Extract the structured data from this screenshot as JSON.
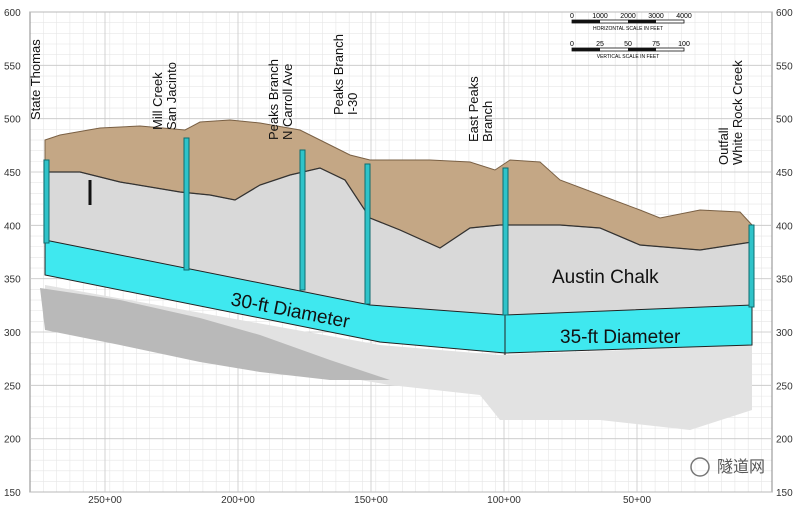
{
  "left_axis": {
    "ticks": [
      150,
      200,
      250,
      300,
      350,
      400,
      450,
      500,
      550,
      600
    ]
  },
  "right_axis": {
    "ticks": [
      150,
      200,
      250,
      300,
      350,
      400,
      450,
      500,
      550,
      600
    ]
  },
  "stations": [
    "250+00",
    "200+00",
    "150+00",
    "100+00",
    "50+00"
  ],
  "shafts": [
    {
      "lines": [
        "State Thomas"
      ]
    },
    {
      "lines": [
        "Mill Creek",
        "San Jacinto"
      ]
    },
    {
      "lines": [
        "Peaks Branch",
        "N Carroll Ave"
      ]
    },
    {
      "lines": [
        "Peaks Branch",
        "I-30"
      ]
    },
    {
      "lines": [
        "East Peaks",
        "Branch"
      ]
    },
    {
      "lines": [
        "Outfall",
        "White Rock Creek"
      ]
    }
  ],
  "labels": {
    "rock": "Austin Chalk",
    "tunnel_west": "30-ft Diameter",
    "tunnel_east": "35-ft Diameter"
  },
  "scale_bar": {
    "horizontal": {
      "ticks": [
        0,
        1000,
        2000,
        3000,
        4000
      ],
      "caption": "HORIZONTAL SCALE IN FEET"
    },
    "vertical": {
      "ticks": [
        0,
        25,
        50,
        75,
        100
      ],
      "caption": "VERTICAL SCALE IN FEET"
    }
  },
  "watermark": "隧道网"
}
